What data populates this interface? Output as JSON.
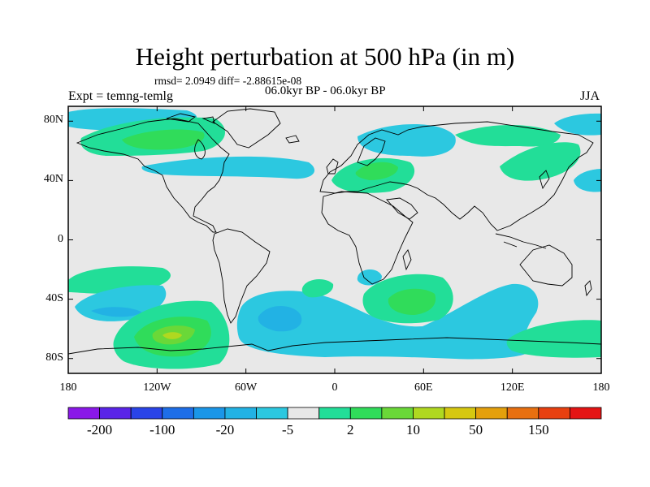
{
  "title": "Height perturbation at 500 hPa (in m)",
  "stats": "rmsd= 2.0949  diff= -2.88615e-08",
  "period": "06.0kyr BP - 06.0kyr BP",
  "experiment": "Expt = temng-temlg",
  "season": "JJA",
  "axes": {
    "y_labels": [
      "80N",
      "40N",
      "0",
      "40S",
      "80S"
    ],
    "y_values": [
      80,
      40,
      0,
      -40,
      -80
    ],
    "x_labels": [
      "180",
      "120W",
      "60W",
      "0",
      "60E",
      "120E",
      "180"
    ],
    "x_values": [
      -180,
      -120,
      -60,
      0,
      60,
      120,
      180
    ],
    "lon_range": [
      -180,
      180
    ],
    "lat_range": [
      -90,
      90
    ]
  },
  "colorbar": {
    "labels": [
      "-200",
      "-100",
      "-20",
      "-5",
      "2",
      "10",
      "50",
      "150"
    ],
    "label_box_index": [
      1,
      3,
      5,
      7,
      9,
      11,
      13,
      15
    ],
    "colors": [
      "#8a18e8",
      "#5a24e8",
      "#2a44e8",
      "#1e6ee8",
      "#1a96e8",
      "#22b2e4",
      "#2cc8e0",
      "#e8e8e8",
      "#22de98",
      "#30dc5a",
      "#6ad838",
      "#b0d820",
      "#d6c810",
      "#e4a00c",
      "#e87010",
      "#e84010",
      "#e41414"
    ]
  },
  "field_colors": {
    "background": "#e8e8e8",
    "neg_weak": "#2cc8e0",
    "neg_mid": "#22b2e4",
    "pos_weak": "#22de98",
    "pos_mid": "#30dc5a",
    "pos_strong": "#6ad838",
    "pos_peak": "#b0d820",
    "coastline": "#000000"
  }
}
